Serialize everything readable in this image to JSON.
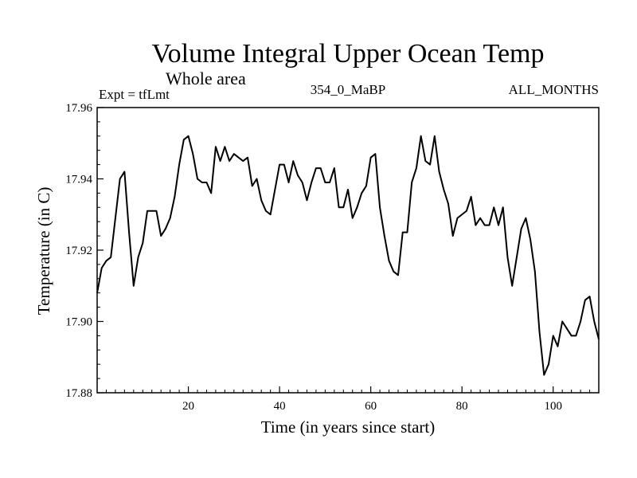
{
  "chart_data": {
    "type": "line",
    "title": "Volume Integral Upper Ocean Temp",
    "subtitle": "Whole area",
    "experiment": "Expt = tfLmt",
    "run_label": "354_0_MaBP",
    "months_label": "ALL_MONTHS",
    "xlabel": "Time (in years since start)",
    "ylabel": "Temperature (in C)",
    "xlim": [
      0,
      110
    ],
    "ylim": [
      17.88,
      17.96
    ],
    "xticks": [
      20,
      40,
      60,
      80,
      100
    ],
    "yticks": [
      "17.88",
      "17.90",
      "17.92",
      "17.94",
      "17.96"
    ],
    "series": [
      {
        "name": "Volume Integral Upper Ocean Temp",
        "color": "#000000",
        "x": [
          0,
          1,
          2,
          3,
          4,
          5,
          6,
          7,
          8,
          9,
          10,
          11,
          12,
          13,
          14,
          15,
          16,
          17,
          18,
          19,
          20,
          21,
          22,
          23,
          24,
          25,
          26,
          27,
          28,
          29,
          30,
          31,
          32,
          33,
          34,
          35,
          36,
          37,
          38,
          39,
          40,
          41,
          42,
          43,
          44,
          45,
          46,
          47,
          48,
          49,
          50,
          51,
          52,
          53,
          54,
          55,
          56,
          57,
          58,
          59,
          60,
          61,
          62,
          63,
          64,
          65,
          66,
          67,
          68,
          69,
          70,
          71,
          72,
          73,
          74,
          75,
          76,
          77,
          78,
          79,
          80,
          81,
          82,
          83,
          84,
          85,
          86,
          87,
          88,
          89,
          90,
          91,
          92,
          93,
          94,
          95,
          96,
          97,
          98,
          99,
          100,
          101,
          102,
          103,
          104,
          105,
          106,
          107,
          108,
          109,
          110
        ],
        "values": [
          17.908,
          17.915,
          17.917,
          17.918,
          17.929,
          17.94,
          17.942,
          17.925,
          17.91,
          17.918,
          17.922,
          17.931,
          17.931,
          17.931,
          17.924,
          17.926,
          17.929,
          17.935,
          17.944,
          17.951,
          17.952,
          17.947,
          17.94,
          17.939,
          17.939,
          17.936,
          17.949,
          17.945,
          17.949,
          17.945,
          17.947,
          17.946,
          17.945,
          17.946,
          17.938,
          17.94,
          17.934,
          17.931,
          17.93,
          17.937,
          17.944,
          17.944,
          17.939,
          17.945,
          17.941,
          17.939,
          17.934,
          17.939,
          17.943,
          17.943,
          17.939,
          17.939,
          17.943,
          17.932,
          17.932,
          17.937,
          17.929,
          17.932,
          17.936,
          17.938,
          17.946,
          17.947,
          17.932,
          17.924,
          17.917,
          17.914,
          17.913,
          17.925,
          17.925,
          17.939,
          17.943,
          17.952,
          17.945,
          17.944,
          17.952,
          17.942,
          17.937,
          17.933,
          17.924,
          17.929,
          17.93,
          17.931,
          17.935,
          17.927,
          17.929,
          17.927,
          17.927,
          17.932,
          17.927,
          17.932,
          17.918,
          17.91,
          17.918,
          17.926,
          17.929,
          17.923,
          17.914,
          17.897,
          17.885,
          17.888,
          17.896,
          17.893,
          17.9,
          17.898,
          17.896,
          17.896,
          17.9,
          17.906,
          17.907,
          17.9,
          17.895
        ]
      }
    ]
  }
}
